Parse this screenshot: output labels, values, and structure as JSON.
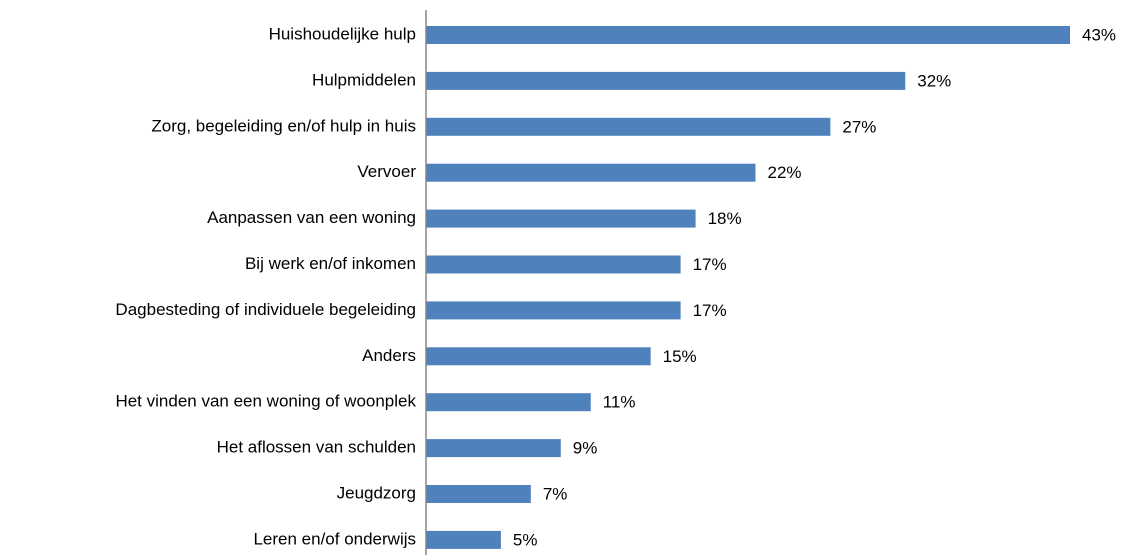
{
  "chart_data": {
    "type": "bar",
    "orientation": "horizontal",
    "categories": [
      "Huishoudelijke hulp",
      "Hulpmiddelen",
      "Zorg, begeleiding en/of hulp in huis",
      "Vervoer",
      "Aanpassen van een woning",
      "Bij werk en/of inkomen",
      "Dagbesteding of individuele begeleiding",
      "Anders",
      "Het vinden van een woning of woonplek",
      "Het aflossen van schulden",
      "Jeugdzorg",
      "Leren en/of onderwijs"
    ],
    "values": [
      43,
      32,
      27,
      22,
      18,
      17,
      17,
      15,
      11,
      9,
      7,
      5
    ],
    "value_labels": [
      "43%",
      "32%",
      "27%",
      "22%",
      "18%",
      "17%",
      "17%",
      "15%",
      "11%",
      "9%",
      "7%",
      "5%"
    ],
    "color": "#4f81bd"
  }
}
